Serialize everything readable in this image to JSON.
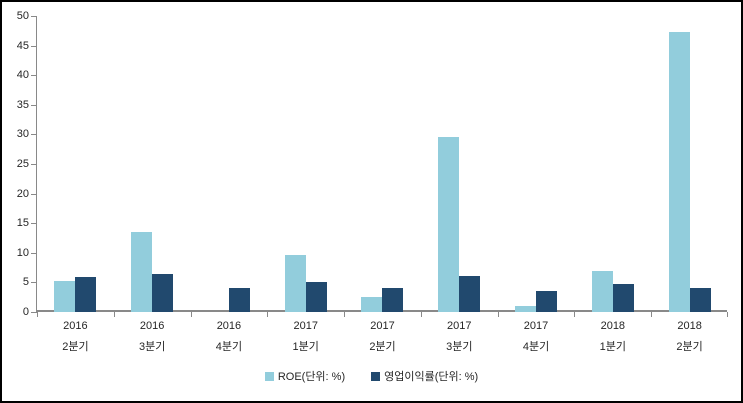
{
  "chart_data": {
    "type": "bar",
    "title": "",
    "xlabel": "",
    "ylabel": "",
    "categories": [
      [
        "2016",
        "2분기"
      ],
      [
        "2016",
        "3분기"
      ],
      [
        "2016",
        "4분기"
      ],
      [
        "2017",
        "1분기"
      ],
      [
        "2017",
        "2분기"
      ],
      [
        "2017",
        "3분기"
      ],
      [
        "2017",
        "4분기"
      ],
      [
        "2018",
        "1분기"
      ],
      [
        "2018",
        "2분기"
      ]
    ],
    "series": [
      {
        "name": "ROE(단위: %)",
        "color": "#92CDDC",
        "values": [
          5.2,
          13.5,
          0,
          9.7,
          2.5,
          29.6,
          1.1,
          6.9,
          47.3
        ]
      },
      {
        "name": "영업이익률(단위: %)",
        "color": "#21496E",
        "values": [
          5.9,
          6.5,
          4.1,
          5.0,
          4.1,
          6.0,
          3.5,
          4.8,
          4.1
        ]
      }
    ],
    "ylim": [
      0,
      50
    ],
    "ytick_step": 5,
    "grid": false,
    "legend_position": "bottom",
    "axis_color": "#898989",
    "text_color": "#262626",
    "background_color": "#ffffff",
    "border_color": "#000000"
  }
}
